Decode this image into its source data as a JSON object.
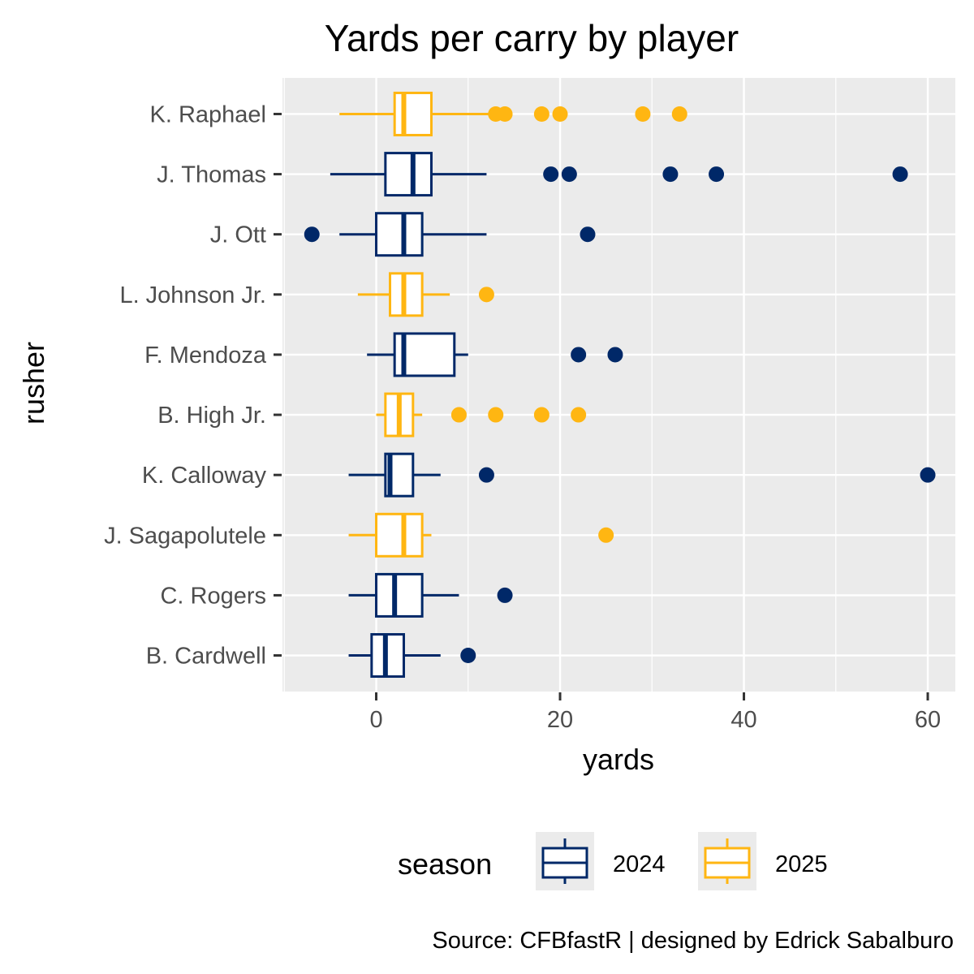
{
  "chart_data": {
    "type": "boxplot",
    "orientation": "horizontal",
    "title": "Yards per carry by player",
    "xlabel": "yards",
    "ylabel": "rusher",
    "xlim": [
      -10.2,
      63
    ],
    "x_ticks": [
      0,
      20,
      40,
      60
    ],
    "x_tick_labels": [
      "0",
      "20",
      "40",
      "60"
    ],
    "legend": {
      "title": "season",
      "position": "bottom",
      "entries": [
        {
          "label": "2024",
          "color": "#002868"
        },
        {
          "label": "2025",
          "color": "#FFB612"
        }
      ]
    },
    "panel_background": "#EBEBEB",
    "grid": true,
    "caption": "Source: CFBfastR | designed by Edrick Sabalburo",
    "categories": [
      "K. Raphael",
      "J. Thomas",
      "J. Ott",
      "L. Johnson Jr.",
      "F. Mendoza",
      "B. High Jr.",
      "K. Calloway",
      "J. Sagapolutele",
      "C. Rogers",
      "B. Cardwell"
    ],
    "boxes": [
      {
        "rusher": "K. Raphael",
        "season": "2025",
        "whisker_low": -4,
        "q1": 2,
        "median": 3,
        "q3": 6,
        "whisker_high": 13,
        "outliers": [
          13,
          14,
          18,
          20,
          29,
          33
        ]
      },
      {
        "rusher": "J. Thomas",
        "season": "2024",
        "whisker_low": -5,
        "q1": 1,
        "median": 4,
        "q3": 6,
        "whisker_high": 12,
        "outliers": [
          19,
          21,
          32,
          37,
          57
        ]
      },
      {
        "rusher": "J. Ott",
        "season": "2024",
        "whisker_low": -4,
        "q1": 0,
        "median": 3,
        "q3": 5,
        "whisker_high": 12,
        "outliers": [
          -7,
          23
        ]
      },
      {
        "rusher": "L. Johnson Jr.",
        "season": "2025",
        "whisker_low": -2,
        "q1": 1.5,
        "median": 3,
        "q3": 5,
        "whisker_high": 8,
        "outliers": [
          12
        ]
      },
      {
        "rusher": "F. Mendoza",
        "season": "2024",
        "whisker_low": -1,
        "q1": 2,
        "median": 3,
        "q3": 8.5,
        "whisker_high": 10,
        "outliers": [
          22,
          26
        ]
      },
      {
        "rusher": "B. High Jr.",
        "season": "2025",
        "whisker_low": 0,
        "q1": 1,
        "median": 2.5,
        "q3": 4,
        "whisker_high": 5,
        "outliers": [
          9,
          13,
          18,
          22
        ]
      },
      {
        "rusher": "K. Calloway",
        "season": "2024",
        "whisker_low": -3,
        "q1": 1,
        "median": 1.5,
        "q3": 4,
        "whisker_high": 7,
        "outliers": [
          12,
          60
        ]
      },
      {
        "rusher": "J. Sagapolutele",
        "season": "2025",
        "whisker_low": -3,
        "q1": 0,
        "median": 3,
        "q3": 5,
        "whisker_high": 6,
        "outliers": [
          25
        ]
      },
      {
        "rusher": "C. Rogers",
        "season": "2024",
        "whisker_low": -3,
        "q1": 0,
        "median": 2,
        "q3": 5,
        "whisker_high": 9,
        "outliers": [
          14
        ]
      },
      {
        "rusher": "B. Cardwell",
        "season": "2024",
        "whisker_low": -3,
        "q1": -0.5,
        "median": 1,
        "q3": 3,
        "whisker_high": 7,
        "outliers": [
          10
        ]
      }
    ]
  }
}
